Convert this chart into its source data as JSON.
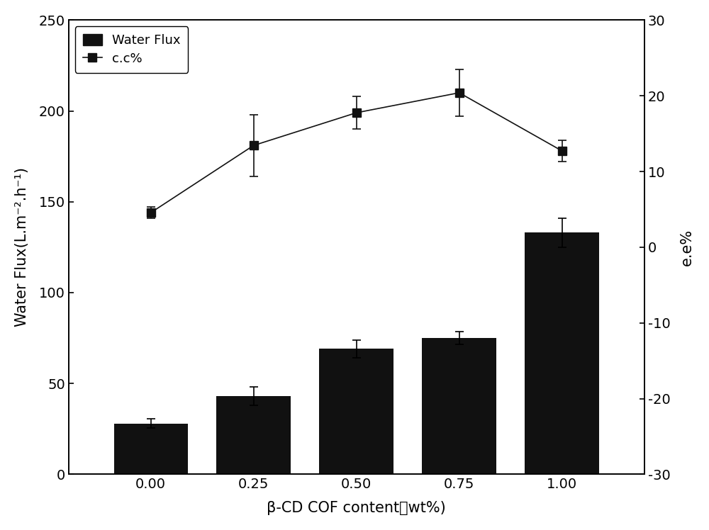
{
  "x_labels": [
    "0.00",
    "0.25",
    "0.50",
    "0.75",
    "1.00"
  ],
  "x_values": [
    0.0,
    0.25,
    0.5,
    0.75,
    1.0
  ],
  "bar_values": [
    28,
    43,
    69,
    75,
    133
  ],
  "bar_errors": [
    2.5,
    5,
    5,
    3.5,
    8
  ],
  "line_values": [
    144,
    181,
    199,
    210,
    178
  ],
  "line_errors": [
    3,
    17,
    9,
    13,
    6
  ],
  "bar_color": "#111111",
  "line_color": "#111111",
  "ylabel_left": "Water Flux(L.m⁻².h⁻¹)",
  "ylabel_right": "e.e%",
  "xlabel": "β-CD COF content（wt%)",
  "ylim_left": [
    0,
    250
  ],
  "ylim_right": [
    -30,
    30
  ],
  "yticks_left": [
    0,
    50,
    100,
    150,
    200,
    250
  ],
  "yticks_right": [
    -30,
    -20,
    -10,
    0,
    10,
    20,
    30
  ],
  "legend_bar_label": "Water Flux",
  "legend_line_label": "c.c%",
  "background_color": "#ffffff",
  "figsize": [
    10.0,
    7.48
  ],
  "dpi": 100,
  "bar_width": 0.18
}
